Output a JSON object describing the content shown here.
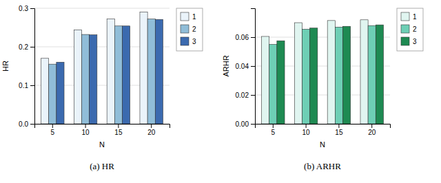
{
  "chart_data": [
    {
      "type": "bar",
      "title": "(a) HR",
      "xlabel": "N",
      "ylabel": "HR",
      "categories": [
        "5",
        "10",
        "15",
        "20"
      ],
      "series": [
        {
          "name": "1",
          "color": "#EAF3FA",
          "values": [
            0.17,
            0.244,
            0.272,
            0.29
          ]
        },
        {
          "name": "2",
          "color": "#90BDD8",
          "values": [
            0.155,
            0.232,
            0.254,
            0.272
          ]
        },
        {
          "name": "3",
          "color": "#3B6AAF",
          "values": [
            0.16,
            0.231,
            0.254,
            0.271
          ]
        }
      ],
      "ylim": [
        0.0,
        0.3
      ],
      "yticks": [
        {
          "value": 0.0,
          "label": "0.0"
        },
        0.1,
        0.2,
        0.3
      ],
      "grid": true,
      "legend": "right"
    },
    {
      "type": "bar",
      "title": "(b) ARHR",
      "xlabel": "N",
      "ylabel": "ARHR",
      "categories": [
        "5",
        "10",
        "15",
        "20"
      ],
      "series": [
        {
          "name": "1",
          "color": "#E0F5F0",
          "values": [
            0.0605,
            0.07,
            0.0715,
            0.072
          ]
        },
        {
          "name": "2",
          "color": "#6ECFB5",
          "values": [
            0.055,
            0.0655,
            0.067,
            0.068
          ]
        },
        {
          "name": "3",
          "color": "#1E8A52",
          "values": [
            0.0575,
            0.0663,
            0.0675,
            0.0685
          ]
        }
      ],
      "ylim": [
        0.0,
        0.08
      ],
      "yticks": [
        {
          "value": 0.0,
          "label": "0.00"
        },
        0.02,
        0.04,
        0.06
      ],
      "grid": true,
      "legend": "right"
    }
  ]
}
